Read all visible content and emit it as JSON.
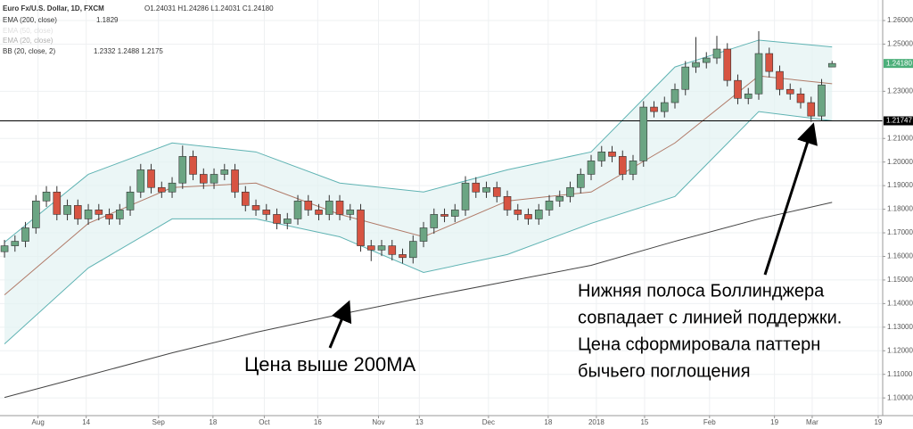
{
  "chart_data": {
    "type": "candlestick",
    "header": {
      "symbol": "Euro Fx/U.S. Dollar, 1D, FXCM",
      "ohlc": "O1.24031 H1.24286 L1.24031 C1.24180",
      "indicators": [
        {
          "label": "EMA (200, close)",
          "value": "1.1829"
        },
        {
          "label": "EMA (50, close)"
        },
        {
          "label": "EMA (20, close)"
        },
        {
          "label": "BB (20, close, 2)",
          "value": "1.2332  1.2488  1.2175"
        }
      ]
    },
    "categories": [
      null,
      null,
      null,
      null,
      null,
      null,
      null,
      null,
      null,
      null,
      null,
      null,
      null,
      null,
      null,
      null,
      null,
      null,
      null,
      null,
      null,
      null,
      null,
      null,
      null,
      null,
      null,
      null,
      null,
      null,
      null,
      null,
      null,
      null,
      null,
      null,
      null,
      null,
      null,
      null,
      null,
      null,
      null,
      null,
      null,
      null,
      null,
      null,
      null,
      null,
      null,
      null,
      null,
      null,
      null,
      null,
      null,
      null,
      null,
      null,
      null,
      null,
      null,
      null,
      null,
      null,
      null,
      null,
      null,
      null,
      null,
      null,
      null,
      null,
      null,
      null,
      null,
      null,
      null,
      null
    ],
    "open": [
      1.162,
      1.1645,
      1.1664,
      1.1721,
      1.1835,
      1.1873,
      1.1778,
      1.1816,
      1.1759,
      1.1797,
      1.1778,
      1.1759,
      1.1797,
      1.1873,
      1.1967,
      1.1892,
      1.1873,
      1.1911,
      1.2024,
      1.1948,
      1.1911,
      1.1948,
      1.1967,
      1.1873,
      1.1816,
      1.1797,
      1.1778,
      1.174,
      1.1759,
      1.1835,
      1.1797,
      1.1778,
      1.1835,
      1.1778,
      1.1797,
      1.1645,
      1.1627,
      1.1645,
      1.1608,
      1.1595,
      1.1664,
      1.1721,
      1.1778,
      1.177,
      1.1797,
      1.1911,
      1.1873,
      1.1892,
      1.1854,
      1.1797,
      1.1778,
      1.1759,
      1.1797,
      1.1835,
      1.1854,
      1.1892,
      1.1948,
      1.2005,
      1.2043,
      1.2024,
      1.1948,
      1.2005,
      1.2233,
      1.2214,
      1.2252,
      1.2308,
      1.2403,
      1.2422,
      1.2441,
      1.2479,
      1.2346,
      1.227,
      1.2289,
      1.246,
      1.2384,
      1.2308,
      1.2289,
      1.2252,
      1.2195,
      1.2403
    ],
    "high": [
      1.167,
      1.1689,
      1.1746,
      1.186,
      1.1898,
      1.1898,
      1.1841,
      1.1841,
      1.1822,
      1.1822,
      1.1803,
      1.1822,
      1.1898,
      1.1992,
      1.1992,
      1.1917,
      1.1936,
      1.207,
      1.2049,
      1.1973,
      1.1973,
      1.1992,
      1.1992,
      1.1898,
      1.1841,
      1.1822,
      1.1803,
      1.1784,
      1.186,
      1.186,
      1.1822,
      1.186,
      1.186,
      1.1822,
      1.1822,
      1.167,
      1.167,
      1.167,
      1.1633,
      1.1689,
      1.1746,
      1.1803,
      1.1803,
      1.1822,
      1.194,
      1.1936,
      1.1917,
      1.1917,
      1.1879,
      1.1822,
      1.1803,
      1.1822,
      1.186,
      1.1879,
      1.1917,
      1.1973,
      1.203,
      1.2068,
      1.2068,
      1.2049,
      1.203,
      1.2258,
      1.2258,
      1.2277,
      1.2333,
      1.2428,
      1.253,
      1.2466,
      1.2535,
      1.2504,
      1.2371,
      1.2314,
      1.2555,
      1.2485,
      1.2409,
      1.2333,
      1.2314,
      1.2277,
      1.2352,
      1.2429
    ],
    "low": [
      1.1595,
      1.162,
      1.1639,
      1.1696,
      1.181,
      1.1753,
      1.1753,
      1.1734,
      1.1734,
      1.1753,
      1.1734,
      1.1734,
      1.1772,
      1.1848,
      1.1867,
      1.1848,
      1.1848,
      1.1886,
      1.1923,
      1.1886,
      1.1886,
      1.1923,
      1.1848,
      1.1791,
      1.1772,
      1.1753,
      1.1715,
      1.1715,
      1.1734,
      1.1772,
      1.1753,
      1.1753,
      1.1753,
      1.1753,
      1.162,
      1.158,
      1.1602,
      1.1583,
      1.157,
      1.157,
      1.1639,
      1.1696,
      1.1745,
      1.1745,
      1.1772,
      1.1848,
      1.1848,
      1.1829,
      1.1772,
      1.1753,
      1.1734,
      1.1734,
      1.1772,
      1.181,
      1.1829,
      1.1867,
      1.1923,
      1.198,
      1.1999,
      1.1923,
      1.1923,
      1.198,
      1.2189,
      1.2189,
      1.2227,
      1.2283,
      1.2378,
      1.2397,
      1.2416,
      1.2321,
      1.2245,
      1.2245,
      1.2264,
      1.2359,
      1.2283,
      1.2264,
      1.2227,
      1.217,
      1.2175,
      1.2403
    ],
    "close": [
      1.1645,
      1.1664,
      1.1721,
      1.1835,
      1.1873,
      1.1778,
      1.1816,
      1.1759,
      1.1797,
      1.1778,
      1.1759,
      1.1797,
      1.1873,
      1.1967,
      1.1892,
      1.1873,
      1.1911,
      1.2024,
      1.1948,
      1.1911,
      1.1948,
      1.1967,
      1.1873,
      1.1816,
      1.1797,
      1.1778,
      1.174,
      1.1759,
      1.1835,
      1.1797,
      1.1778,
      1.1835,
      1.1778,
      1.1797,
      1.1645,
      1.1627,
      1.1645,
      1.1608,
      1.1595,
      1.1664,
      1.1721,
      1.1778,
      1.177,
      1.1797,
      1.1911,
      1.1873,
      1.1892,
      1.1854,
      1.1797,
      1.1778,
      1.1759,
      1.1797,
      1.1835,
      1.1854,
      1.1892,
      1.1948,
      1.2005,
      1.2043,
      1.2024,
      1.1948,
      1.2005,
      1.2233,
      1.2214,
      1.2252,
      1.2308,
      1.2403,
      1.2422,
      1.2441,
      1.2479,
      1.2346,
      1.227,
      1.2289,
      1.246,
      1.2384,
      1.2308,
      1.2289,
      1.2252,
      1.2195,
      1.2327,
      1.2418
    ],
    "up_color": "#6ba583",
    "down_color": "#d75442",
    "bb": {
      "x": [
        0,
        8,
        16,
        24,
        32,
        40,
        48,
        56,
        64,
        72,
        79
      ],
      "upper": [
        1.166,
        1.1948,
        1.2081,
        1.2043,
        1.1911,
        1.1873,
        1.1967,
        1.2043,
        1.2403,
        1.2517,
        1.2488
      ],
      "basis": [
        1.1437,
        1.174,
        1.1892,
        1.1911,
        1.1778,
        1.1683,
        1.1835,
        1.1873,
        1.2081,
        1.2365,
        1.2332
      ],
      "lower": [
        1.1229,
        1.1551,
        1.1759,
        1.1759,
        1.1683,
        1.1532,
        1.1608,
        1.174,
        1.1854,
        1.2214,
        1.2175
      ],
      "band_color": "#5fb3b3",
      "fill_color": "#e3f2f2",
      "basis_color": "#b07a68"
    },
    "ema200": {
      "x": [
        0,
        8,
        16,
        24,
        32,
        40,
        48,
        56,
        64,
        72,
        79
      ],
      "values": [
        1.1002,
        1.1096,
        1.1191,
        1.1278,
        1.1354,
        1.1426,
        1.1494,
        1.1562,
        1.1664,
        1.1759,
        1.1829
      ],
      "color": "#444444"
    },
    "support": {
      "value": 1.21747,
      "label": "1.21747"
    },
    "last_price": {
      "value": 1.2418,
      "label": "1.24180",
      "color": "#4caf7a"
    },
    "ylim": [
      1.0925,
      1.2687
    ],
    "xlim": [
      -0.43,
      83.83
    ],
    "yticks": [
      {
        "value": 1.1,
        "label": "1.10000"
      },
      {
        "value": 1.11,
        "label": "1.11000"
      },
      {
        "value": 1.12,
        "label": "1.12000"
      },
      {
        "value": 1.13,
        "label": "1.13000"
      },
      {
        "value": 1.14,
        "label": "1.14000"
      },
      {
        "value": 1.15,
        "label": "1.15000"
      },
      {
        "value": 1.16,
        "label": "1.16000"
      },
      {
        "value": 1.17,
        "label": "1.17000"
      },
      {
        "value": 1.18,
        "label": "1.18000"
      },
      {
        "value": 1.19,
        "label": "1.19000"
      },
      {
        "value": 1.2,
        "label": "1.20000"
      },
      {
        "value": 1.21,
        "label": "1.21000"
      },
      {
        "value": 1.23,
        "label": "1.23000"
      },
      {
        "value": 1.25,
        "label": "1.25000"
      },
      {
        "value": 1.26,
        "label": "1.26000"
      }
    ],
    "xticks": [
      {
        "value": 3.2,
        "label": "Aug"
      },
      {
        "value": 7.8,
        "label": "14"
      },
      {
        "value": 14.7,
        "label": "Sep"
      },
      {
        "value": 19.9,
        "label": "18"
      },
      {
        "value": 24.8,
        "label": "Oct"
      },
      {
        "value": 29.9,
        "label": "16"
      },
      {
        "value": 35.7,
        "label": "Nov"
      },
      {
        "value": 39.6,
        "label": "13"
      },
      {
        "value": 46.2,
        "label": "Dec"
      },
      {
        "value": 51.9,
        "label": "18"
      },
      {
        "value": 56.5,
        "label": "2018"
      },
      {
        "value": 61.1,
        "label": "15"
      },
      {
        "value": 67.3,
        "label": "Feb"
      },
      {
        "value": 73.5,
        "label": "19"
      },
      {
        "value": 77.1,
        "label": "Mar"
      },
      {
        "value": 83.4,
        "label": "19"
      }
    ],
    "grid": true,
    "annotations": [
      [
        "Нижняя полоса Боллинджера",
        "совпадает с линией поддержки.",
        "Цена сформировала паттерн",
        "бычьего поглощения"
      ],
      [
        "Цена выше 200MA"
      ]
    ]
  }
}
